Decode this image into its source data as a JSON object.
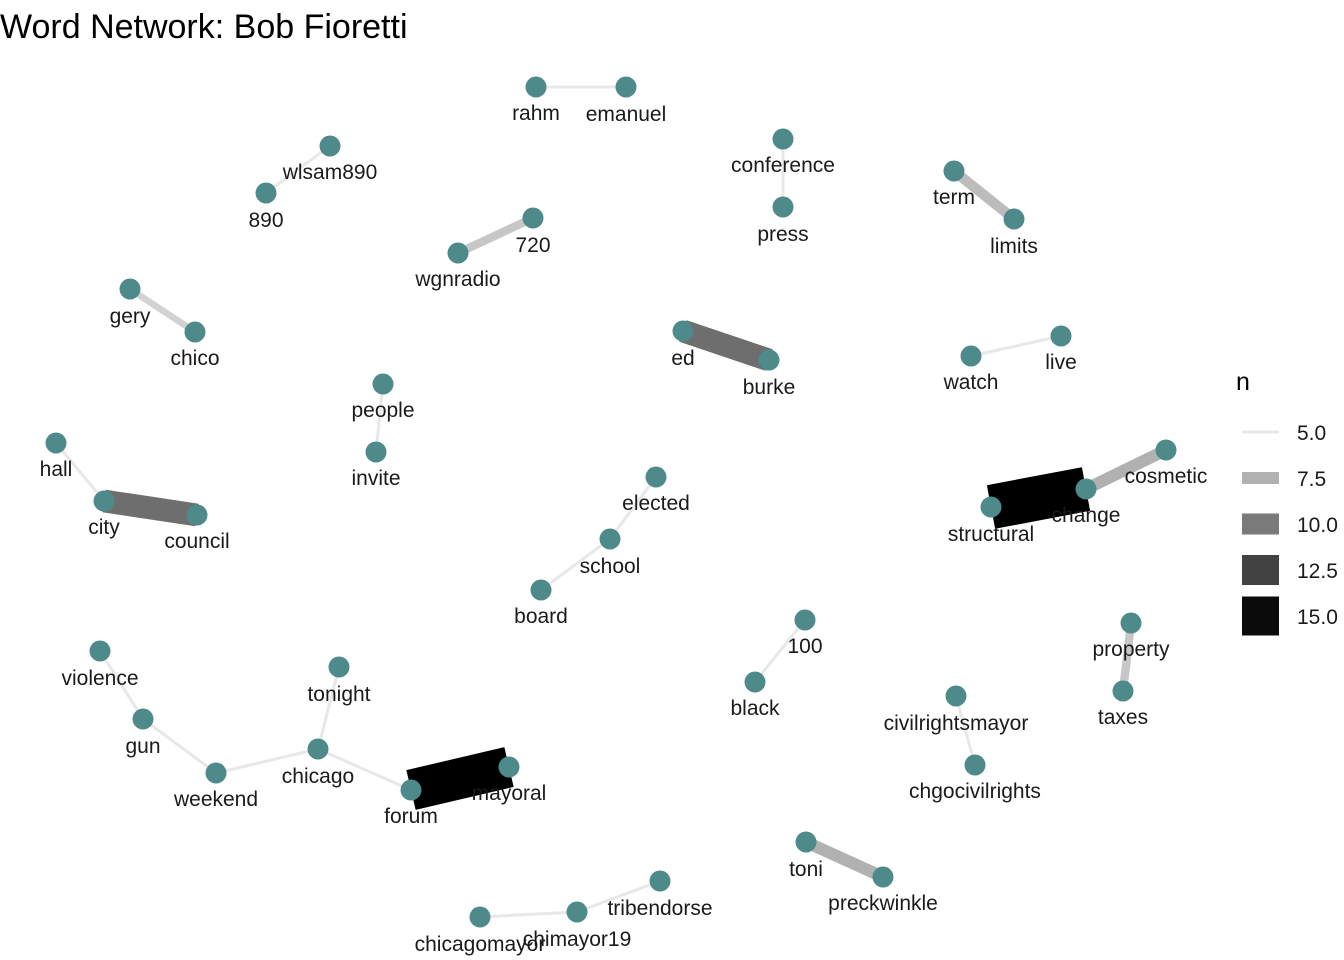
{
  "chart_data": {
    "type": "network",
    "title": "Word Network: Bob Fioretti",
    "node_color": "#4e8a8a",
    "edges": [
      {
        "from": "rahm",
        "to": "emanuel",
        "n": 5
      },
      {
        "from": "wlsam890",
        "to": "890",
        "n": 5
      },
      {
        "from": "conference",
        "to": "press",
        "n": 5
      },
      {
        "from": "term",
        "to": "limits",
        "n": 7
      },
      {
        "from": "wgnradio",
        "to": "720",
        "n": 6.5
      },
      {
        "from": "gery",
        "to": "chico",
        "n": 6
      },
      {
        "from": "ed",
        "to": "burke",
        "n": 10.5
      },
      {
        "from": "watch",
        "to": "live",
        "n": 5
      },
      {
        "from": "people",
        "to": "invite",
        "n": 5
      },
      {
        "from": "hall",
        "to": "city",
        "n": 5
      },
      {
        "from": "city",
        "to": "council",
        "n": 10.5
      },
      {
        "from": "elected",
        "to": "school",
        "n": 5
      },
      {
        "from": "school",
        "to": "board",
        "n": 5
      },
      {
        "from": "cosmetic",
        "to": "change",
        "n": 7.5
      },
      {
        "from": "structural",
        "to": "change",
        "n": 16.5
      },
      {
        "from": "100",
        "to": "black",
        "n": 5
      },
      {
        "from": "property",
        "to": "taxes",
        "n": 6.5
      },
      {
        "from": "violence",
        "to": "gun",
        "n": 5
      },
      {
        "from": "gun",
        "to": "weekend",
        "n": 5
      },
      {
        "from": "weekend",
        "to": "chicago",
        "n": 5
      },
      {
        "from": "tonight",
        "to": "chicago",
        "n": 5
      },
      {
        "from": "chicago",
        "to": "forum",
        "n": 5
      },
      {
        "from": "forum",
        "to": "mayoral",
        "n": 15.5
      },
      {
        "from": "civilrightsmayor",
        "to": "chgocivilrights",
        "n": 5
      },
      {
        "from": "toni",
        "to": "preckwinkle",
        "n": 7.5
      },
      {
        "from": "chicagomayor",
        "to": "chimayor19",
        "n": 5
      },
      {
        "from": "chimayor19",
        "to": "tribendorse",
        "n": 5
      }
    ],
    "legend": {
      "title": "n",
      "placement": "right",
      "entries": [
        {
          "label": "5.0",
          "value": 5
        },
        {
          "label": "7.5",
          "value": 7.5
        },
        {
          "label": "10.0",
          "value": 10
        },
        {
          "label": "12.5",
          "value": 12.5
        },
        {
          "label": "15.0",
          "value": 15
        }
      ]
    }
  }
}
